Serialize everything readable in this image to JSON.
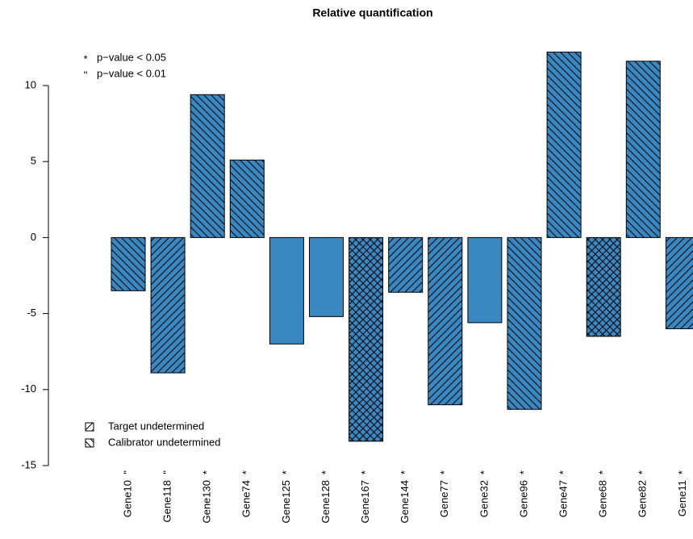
{
  "chart_data": {
    "type": "bar",
    "title": "Relative quantification",
    "categories": [
      "Gene10",
      "Gene118",
      "Gene130",
      "Gene74",
      "Gene125",
      "Gene128",
      "Gene167",
      "Gene144",
      "Gene77",
      "Gene32",
      "Gene96",
      "Gene47",
      "Gene68",
      "Gene82",
      "Gene11"
    ],
    "values": [
      -3.5,
      -8.9,
      9.4,
      5.1,
      -7.0,
      -5.2,
      -13.4,
      -3.6,
      -11.0,
      -5.6,
      -11.3,
      12.2,
      -6.5,
      11.6,
      -6.0
    ],
    "significance": [
      "\"",
      "\"",
      "*",
      "*",
      "*",
      "*",
      "*",
      "*",
      "*",
      "*",
      "*",
      "*",
      "*",
      "*",
      "*"
    ],
    "hatch": [
      "\\",
      "/",
      "\\",
      "\\",
      "none",
      "none",
      "x",
      "/",
      "/",
      "none",
      "\\",
      "\\",
      "x",
      "\\",
      "/"
    ],
    "color": "#3a88c2",
    "ylim": [
      -15,
      10
    ],
    "yticks": [
      -15,
      -10,
      -5,
      0,
      5,
      10
    ],
    "significance_legend": [
      {
        "symbol": "*",
        "label": "p−value < 0.05"
      },
      {
        "symbol": "\"",
        "label": "p−value < 0.01"
      }
    ],
    "hatch_legend": [
      {
        "hatch": "/",
        "label": "Target undetermined"
      },
      {
        "hatch": "\\",
        "label": "Calibrator undetermined"
      }
    ]
  }
}
